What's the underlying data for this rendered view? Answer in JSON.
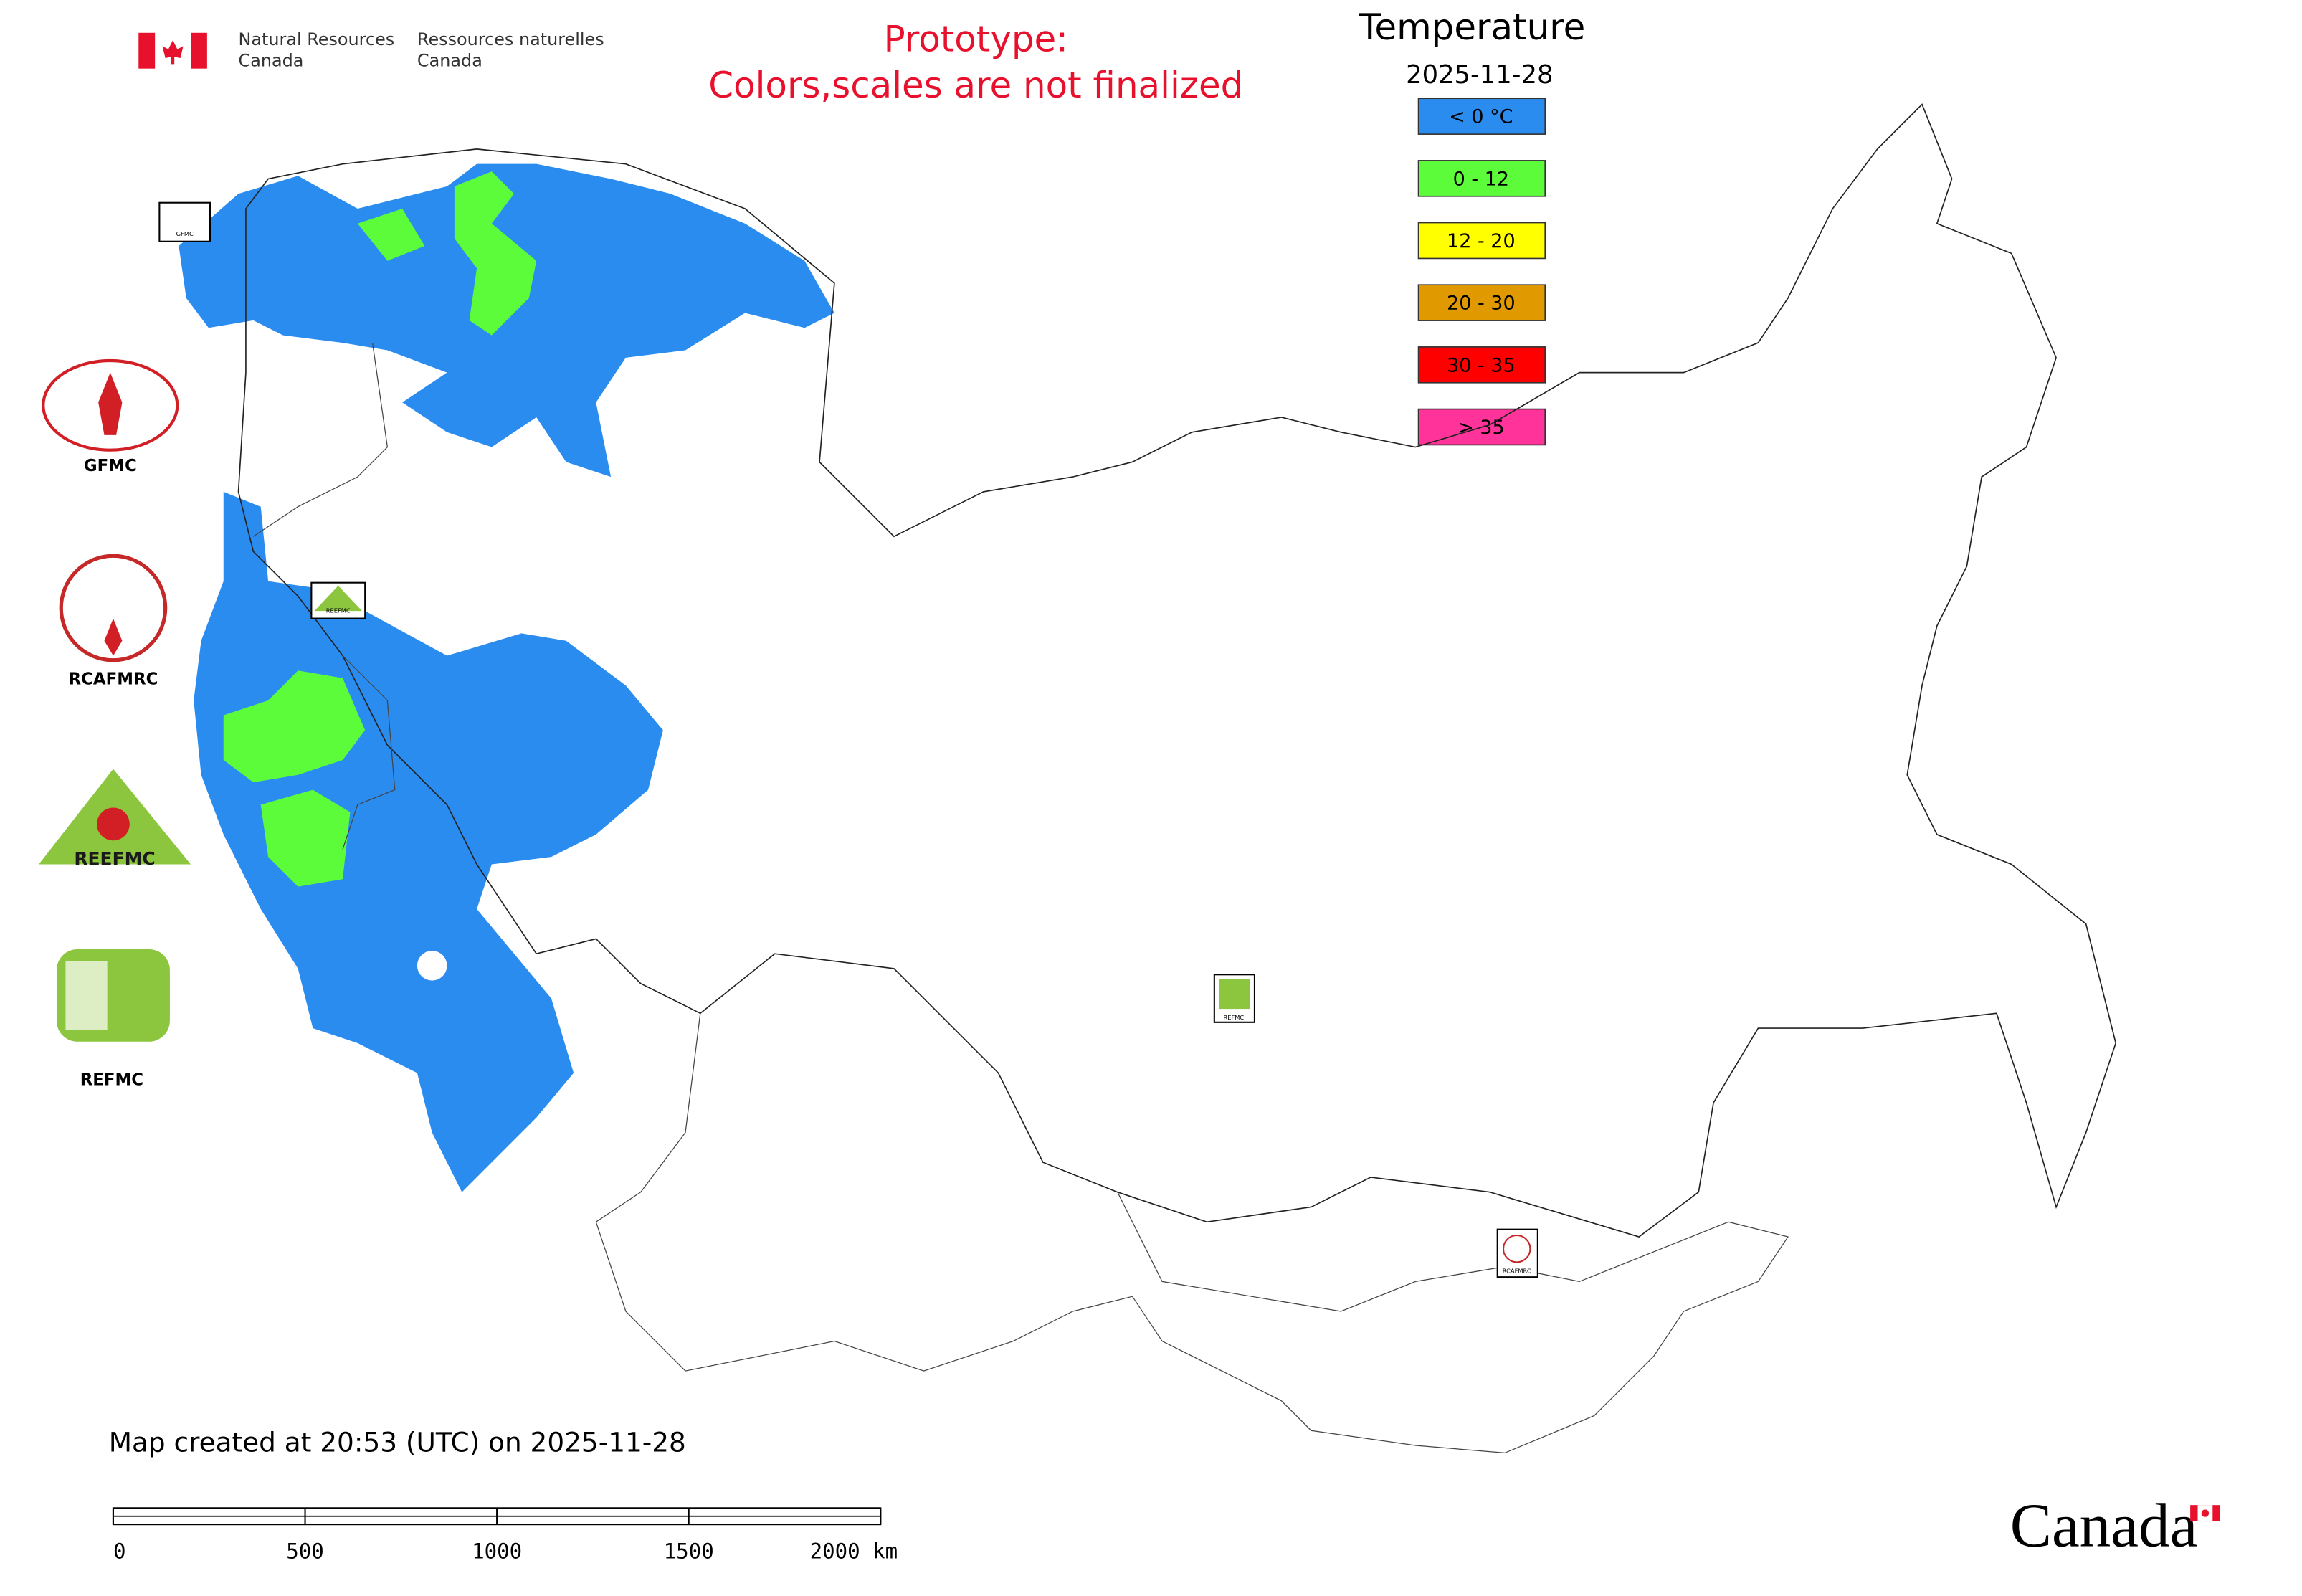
{
  "header": {
    "agency_en": [
      "Natural Resources",
      "Canada"
    ],
    "agency_fr": [
      "Ressources naturelles",
      "Canada"
    ],
    "prototype": [
      "Prototype:",
      "Colors,scales are not finalized"
    ]
  },
  "legend": {
    "title": "Temperature",
    "date": "2025-11-28",
    "items": [
      {
        "label": "< 0 °C",
        "color": "#2b8cf0"
      },
      {
        "label": "0 - 12",
        "color": "#5dfc3a"
      },
      {
        "label": "12 - 20",
        "color": "#ffff00"
      },
      {
        "label": "20 - 30",
        "color": "#e09a00"
      },
      {
        "label": "30 - 35",
        "color": "#ff0000"
      },
      {
        "label": "> 35",
        "color": "#ff3399"
      }
    ]
  },
  "logos": [
    {
      "label": "GFMC"
    },
    {
      "label": "RCAFMRC"
    },
    {
      "label": "REEFMC"
    },
    {
      "label": "REFMC"
    }
  ],
  "map_markers": [
    "GFMC",
    "REEFMC",
    "REFMC",
    "RCAFMRC"
  ],
  "footer": {
    "created": "Map created at 20:53 (UTC) on 2025-11-28",
    "scale_labels": [
      "0",
      "500",
      "1000",
      "1500",
      "2000 km"
    ],
    "wordmark": "Canada"
  }
}
